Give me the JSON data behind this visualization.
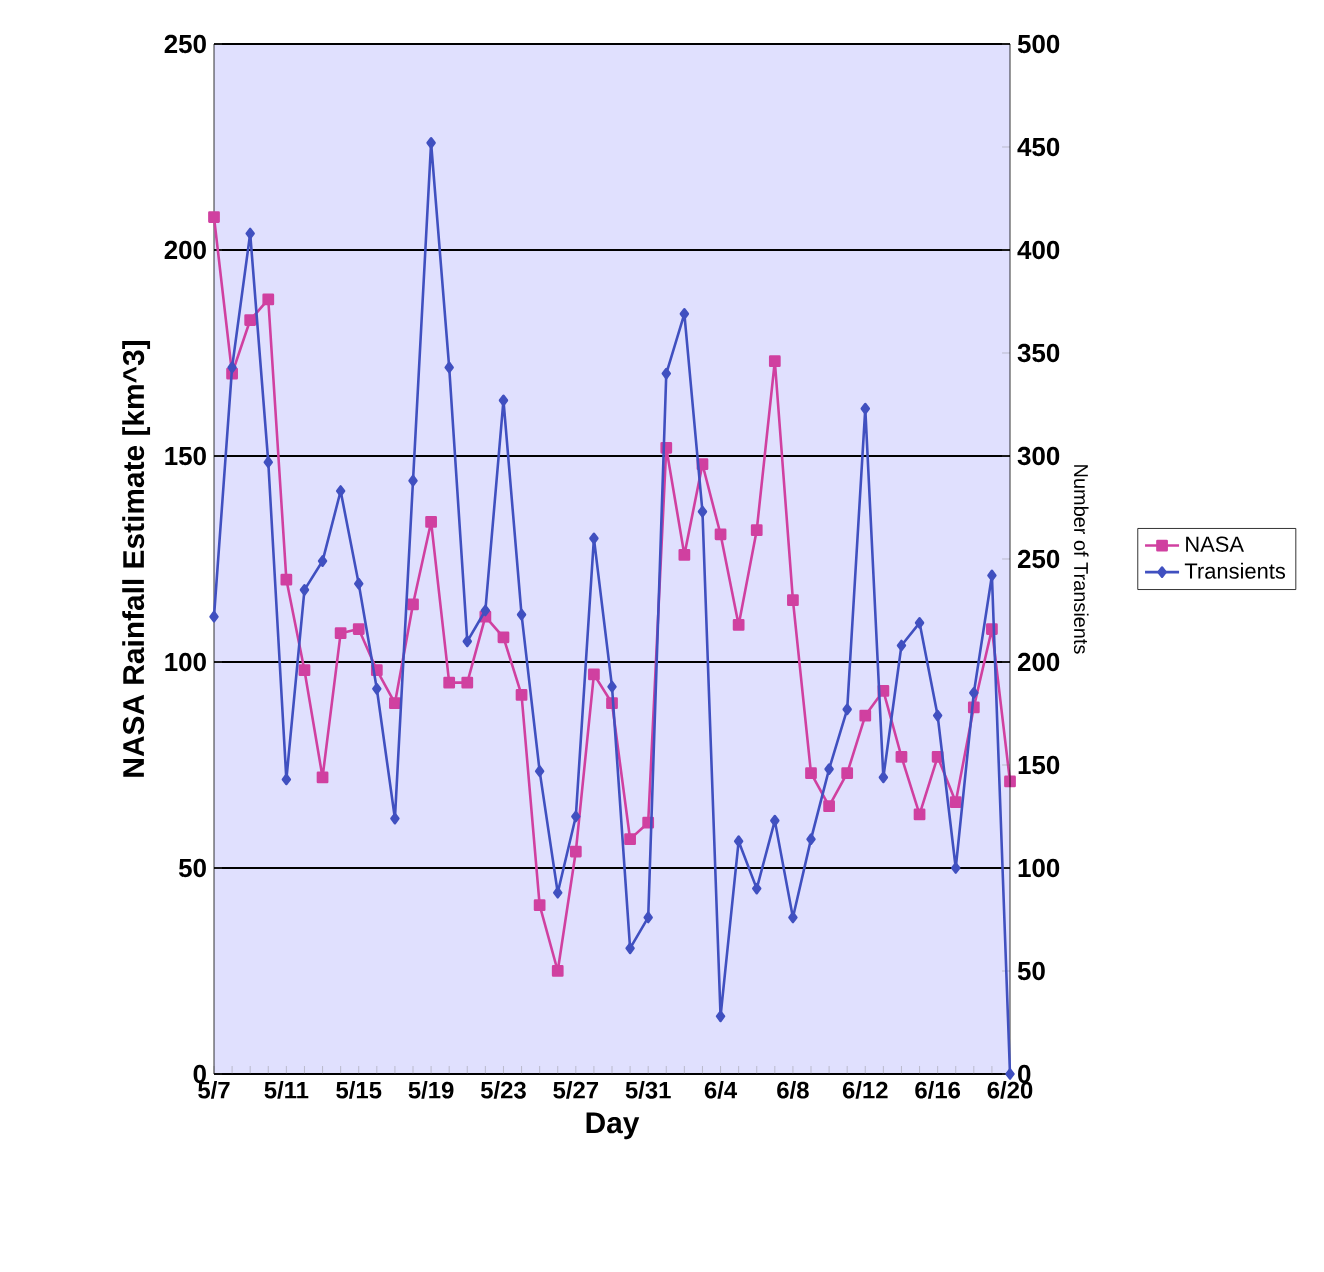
{
  "chart_data": {
    "type": "line",
    "xlabel": "Day",
    "ylabel": "NASA Rainfall Estimate [km^3]",
    "y2label": "Number of Transients",
    "categories": [
      "5/7",
      null,
      null,
      null,
      "5/11",
      null,
      null,
      null,
      "5/15",
      null,
      null,
      null,
      "5/19",
      null,
      null,
      null,
      "5/23",
      null,
      null,
      null,
      "5/27",
      null,
      null,
      null,
      "5/31",
      null,
      null,
      null,
      "6/4",
      null,
      null,
      null,
      "6/8",
      null,
      null,
      null,
      "6/12",
      null,
      null,
      null,
      "6/16",
      null,
      null,
      null,
      "6/20"
    ],
    "ylim": [
      0,
      250
    ],
    "yticks": [
      0,
      50,
      100,
      150,
      200,
      250
    ],
    "y2lim": [
      0,
      500
    ],
    "y2ticks": [
      0,
      50,
      100,
      150,
      200,
      250,
      300,
      350,
      400,
      450,
      500
    ],
    "grid": "y",
    "legend": "right",
    "line_style": "solid",
    "series": [
      {
        "name": "NASA",
        "color": "#d040a0",
        "marker": "square",
        "values": [
          208,
          170,
          183,
          188,
          120,
          98,
          72,
          107,
          108,
          98,
          90,
          114,
          134,
          95,
          95,
          111,
          106,
          92,
          41,
          25,
          54,
          97,
          90,
          57,
          61,
          152,
          126,
          148,
          131,
          109,
          132,
          173,
          115,
          73,
          65,
          73,
          87,
          93,
          77,
          63,
          77,
          66,
          89,
          108,
          71
        ]
      },
      {
        "name": "Transients",
        "color": "#4050c0",
        "marker": "diamond",
        "axis": "y2",
        "values": [
          222,
          343,
          408,
          297,
          143,
          235,
          249,
          283,
          238,
          187,
          124,
          288,
          452,
          343,
          210,
          225,
          327,
          223,
          147,
          88,
          125,
          260,
          188,
          61,
          76,
          340,
          369,
          273,
          28,
          113,
          90,
          123,
          76,
          114,
          148,
          177,
          323,
          144,
          208,
          219,
          174,
          100,
          185,
          242,
          0
        ]
      }
    ]
  }
}
